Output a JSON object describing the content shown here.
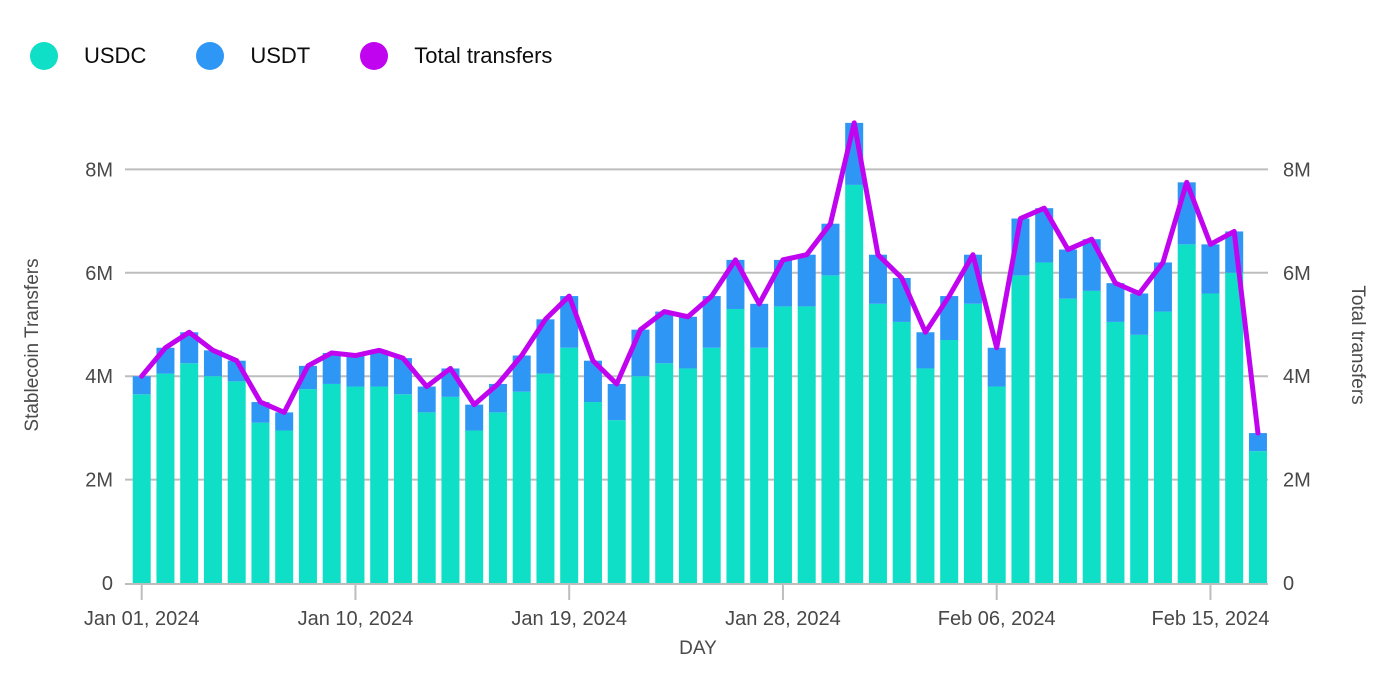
{
  "legend": {
    "items": [
      {
        "label": "USDC",
        "color": "#0FDFC6"
      },
      {
        "label": "USDT",
        "color": "#2E97F5"
      },
      {
        "label": "Total transfers",
        "color": "#C104F0"
      }
    ]
  },
  "axes": {
    "left_title": "Stablecoin Transfers",
    "right_title": "Total transfers",
    "x_title": "DAY"
  },
  "chart_data": {
    "type": "stacked-bar+line",
    "title": "",
    "xlabel": "DAY",
    "ylabel_left": "Stablecoin Transfers",
    "ylabel_right": "Total transfers",
    "ylim": [
      0,
      9
    ],
    "grid": "horizontal",
    "legend_position": "top-left",
    "yticks": [
      {
        "value": 0,
        "label": "0"
      },
      {
        "value": 2,
        "label": "2M"
      },
      {
        "value": 4,
        "label": "4M"
      },
      {
        "value": 6,
        "label": "6M"
      },
      {
        "value": 8,
        "label": "8M"
      }
    ],
    "x_tick_indices": [
      0,
      9,
      18,
      27,
      36,
      45
    ],
    "categories": [
      "Jan 01, 2024",
      "Jan 02, 2024",
      "Jan 03, 2024",
      "Jan 04, 2024",
      "Jan 05, 2024",
      "Jan 06, 2024",
      "Jan 07, 2024",
      "Jan 08, 2024",
      "Jan 09, 2024",
      "Jan 10, 2024",
      "Jan 11, 2024",
      "Jan 12, 2024",
      "Jan 13, 2024",
      "Jan 14, 2024",
      "Jan 15, 2024",
      "Jan 16, 2024",
      "Jan 17, 2024",
      "Jan 18, 2024",
      "Jan 19, 2024",
      "Jan 20, 2024",
      "Jan 21, 2024",
      "Jan 22, 2024",
      "Jan 23, 2024",
      "Jan 24, 2024",
      "Jan 25, 2024",
      "Jan 26, 2024",
      "Jan 27, 2024",
      "Jan 28, 2024",
      "Jan 29, 2024",
      "Jan 30, 2024",
      "Jan 31, 2024",
      "Feb 01, 2024",
      "Feb 02, 2024",
      "Feb 03, 2024",
      "Feb 04, 2024",
      "Feb 05, 2024",
      "Feb 06, 2024",
      "Feb 07, 2024",
      "Feb 08, 2024",
      "Feb 09, 2024",
      "Feb 10, 2024",
      "Feb 11, 2024",
      "Feb 12, 2024",
      "Feb 13, 2024",
      "Feb 14, 2024",
      "Feb 15, 2024",
      "Feb 16, 2024",
      "Feb 17, 2024"
    ],
    "unit": "M",
    "series": [
      {
        "name": "USDC",
        "color": "#0FDFC6",
        "values": [
          3.65,
          4.05,
          4.25,
          4.0,
          3.9,
          3.1,
          2.95,
          3.75,
          3.85,
          3.8,
          3.8,
          3.65,
          3.3,
          3.6,
          2.95,
          3.3,
          3.7,
          4.05,
          4.55,
          3.5,
          3.15,
          4.0,
          4.25,
          4.15,
          4.55,
          5.3,
          4.55,
          5.35,
          5.35,
          5.95,
          7.7,
          5.4,
          5.05,
          4.15,
          4.7,
          5.4,
          3.8,
          5.95,
          6.2,
          5.5,
          5.65,
          5.05,
          4.8,
          5.25,
          6.55,
          5.6,
          6.0,
          2.55
        ]
      },
      {
        "name": "USDT",
        "color": "#2E97F5",
        "values": [
          0.35,
          0.5,
          0.6,
          0.5,
          0.4,
          0.4,
          0.35,
          0.45,
          0.6,
          0.6,
          0.7,
          0.7,
          0.5,
          0.55,
          0.5,
          0.55,
          0.7,
          1.05,
          1.0,
          0.8,
          0.7,
          0.9,
          1.0,
          1.0,
          1.0,
          0.95,
          0.85,
          0.9,
          1.0,
          1.0,
          1.2,
          0.95,
          0.85,
          0.7,
          0.85,
          0.95,
          0.75,
          1.1,
          1.05,
          0.95,
          1.0,
          0.75,
          0.8,
          0.95,
          1.2,
          0.95,
          0.8,
          0.35
        ]
      }
    ],
    "line": {
      "name": "Total transfers",
      "color": "#C104F0",
      "values": [
        4.0,
        4.55,
        4.85,
        4.5,
        4.3,
        3.5,
        3.3,
        4.2,
        4.45,
        4.4,
        4.5,
        4.35,
        3.8,
        4.15,
        3.45,
        3.85,
        4.4,
        5.1,
        5.55,
        4.3,
        3.85,
        4.9,
        5.25,
        5.15,
        5.55,
        6.25,
        5.4,
        6.25,
        6.35,
        6.95,
        8.9,
        6.35,
        5.9,
        4.85,
        5.55,
        6.35,
        4.55,
        7.05,
        7.25,
        6.45,
        6.65,
        5.8,
        5.6,
        6.2,
        7.75,
        6.55,
        6.8,
        2.9
      ]
    },
    "colors": {
      "gridline": "#BDBDBD",
      "tick_text": "#484848",
      "legend_text": "#0d0d0d"
    }
  }
}
